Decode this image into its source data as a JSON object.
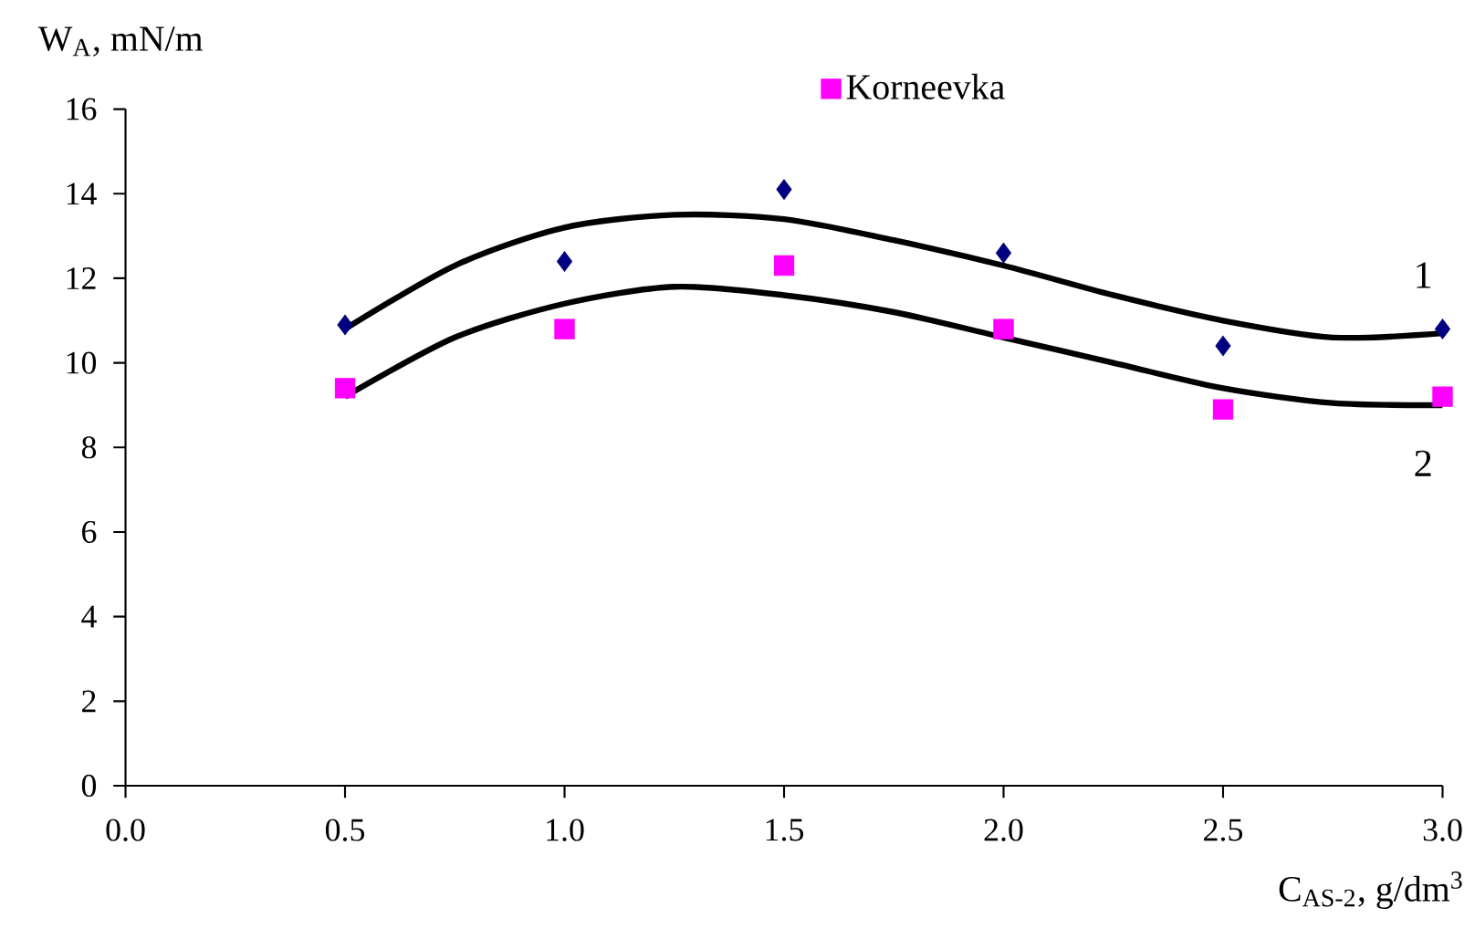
{
  "chart_data": {
    "type": "scatter",
    "xlabel": "C$_{AS-2}$, g/dm$^{3}$",
    "ylabel": "W$_{A}$, mN/m",
    "series": [
      {
        "marker": "diamond",
        "color": "#000080",
        "x": [
          0.5,
          1.0,
          1.5,
          2.0,
          2.5,
          3.0
        ],
        "values": [
          10.9,
          12.4,
          14.1,
          12.6,
          10.4,
          10.8
        ]
      },
      {
        "marker": "square",
        "name": "Korneevka",
        "color": "#ff00ff",
        "x": [
          0.5,
          1.0,
          1.5,
          2.0,
          2.5,
          3.0
        ],
        "values": [
          9.4,
          10.8,
          12.3,
          10.8,
          8.9,
          9.2
        ]
      },
      {
        "type": "line",
        "marker": "none",
        "color": "#000000",
        "x": [
          0.5,
          0.75,
          1.0,
          1.25,
          1.5,
          1.75,
          2.0,
          2.25,
          2.5,
          2.75,
          3.0
        ],
        "values": [
          10.8,
          12.3,
          13.2,
          13.5,
          13.4,
          12.9,
          12.3,
          11.6,
          11.0,
          10.6,
          10.7
        ]
      },
      {
        "type": "line",
        "marker": "none",
        "color": "#000000",
        "x": [
          0.5,
          0.75,
          1.0,
          1.25,
          1.5,
          1.75,
          2.0,
          2.25,
          2.5,
          2.75,
          3.0
        ],
        "values": [
          9.2,
          10.6,
          11.4,
          11.8,
          11.6,
          11.2,
          10.6,
          10.0,
          9.4,
          9.05,
          9.0
        ]
      }
    ],
    "annotations": [
      "1",
      "2"
    ],
    "xlim": [
      0,
      3
    ],
    "ylim": [
      0,
      16
    ],
    "xticks": [
      {
        "value": 0,
        "label": "0.0"
      },
      {
        "value": 0.5,
        "label": "0.5"
      },
      {
        "value": 1,
        "label": "1.0"
      },
      {
        "value": 1.5,
        "label": "1.5"
      },
      {
        "value": 2,
        "label": "2.0"
      },
      {
        "value": 2.5,
        "label": "2.5"
      },
      {
        "value": 3,
        "label": "3.0"
      }
    ],
    "yticks": [
      0,
      2,
      4,
      6,
      8,
      10,
      12,
      14,
      16
    ],
    "grid": false,
    "legend": "top"
  }
}
